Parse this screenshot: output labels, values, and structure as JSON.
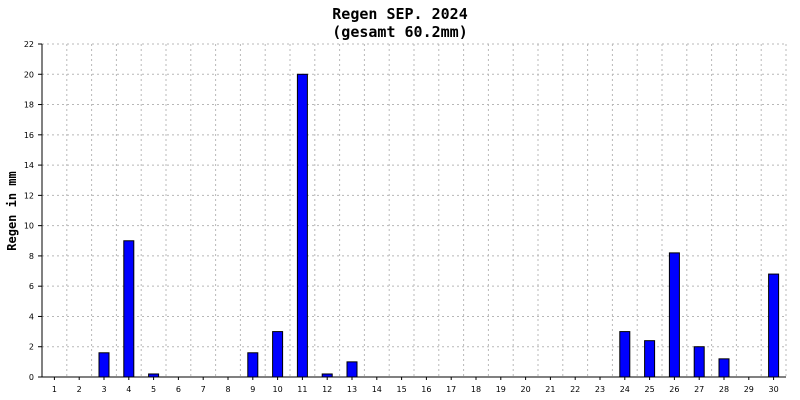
{
  "chart_data": {
    "type": "bar",
    "title": "Regen SEP. 2024",
    "subtitle": "(gesamt 60.2mm)",
    "xlabel": "",
    "ylabel": "Regen in mm",
    "categories": [
      "1",
      "2",
      "3",
      "4",
      "5",
      "6",
      "7",
      "8",
      "9",
      "10",
      "11",
      "12",
      "13",
      "14",
      "15",
      "16",
      "17",
      "18",
      "19",
      "20",
      "21",
      "22",
      "23",
      "24",
      "25",
      "26",
      "27",
      "28",
      "29",
      "30"
    ],
    "values": [
      0,
      0,
      1.6,
      9.0,
      0.2,
      0,
      0,
      0,
      1.6,
      3.0,
      20.0,
      0.2,
      1.0,
      0,
      0,
      0,
      0,
      0,
      0,
      0,
      0,
      0,
      0,
      3.0,
      2.4,
      8.2,
      2.0,
      1.2,
      0,
      6.8
    ],
    "ylim": [
      0,
      22
    ],
    "yticks": [
      "0",
      "2",
      "4",
      "6",
      "8",
      "10",
      "12",
      "14",
      "16",
      "18",
      "20",
      "22"
    ],
    "grid": true,
    "bar_color": "#0000ff"
  }
}
